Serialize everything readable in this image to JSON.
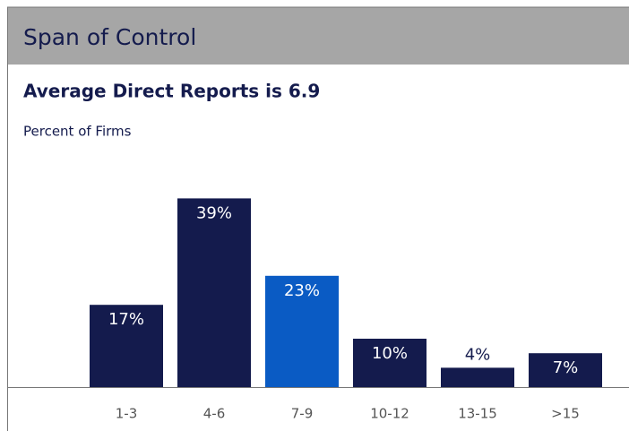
{
  "chart_data": {
    "type": "bar",
    "title": "Span of Control",
    "subtitle": "Average Direct Reports is 6.9",
    "y_label": "Percent of Firms",
    "categories": [
      "1-3",
      "4-6",
      "7-9",
      "10-12",
      "13-15",
      ">15"
    ],
    "values": [
      17,
      39,
      23,
      10,
      4,
      7
    ],
    "value_labels": [
      "17%",
      "39%",
      "23%",
      "10%",
      "4%",
      "7%"
    ],
    "colors": [
      "#141b4d",
      "#141b4d",
      "#0a5bc4",
      "#141b4d",
      "#141b4d",
      "#141b4d"
    ]
  }
}
